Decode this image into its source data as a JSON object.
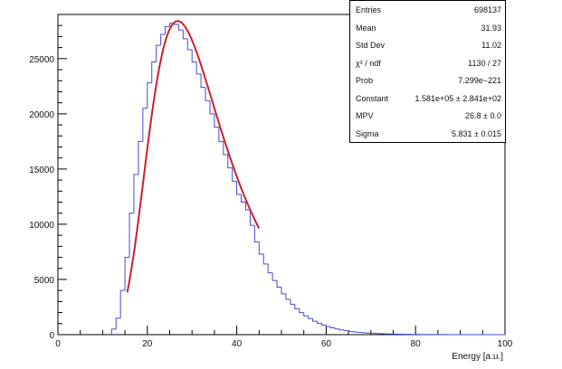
{
  "chart_data": {
    "type": "histogram",
    "title": "",
    "xlabel": "Energy [a.u.]",
    "ylabel": "",
    "xlim": [
      0,
      100
    ],
    "ylim": [
      0,
      29000
    ],
    "x_ticks": [
      0,
      20,
      40,
      60,
      80,
      100
    ],
    "y_ticks": [
      0,
      5000,
      10000,
      15000,
      20000,
      25000
    ],
    "y_tick_labels": [
      "0",
      "5000",
      "10000",
      "15000",
      "20000",
      "25000"
    ],
    "bin_width": 1,
    "histogram": {
      "color": "#4848d8",
      "bins_x": [
        12,
        13,
        14,
        15,
        16,
        17,
        18,
        19,
        20,
        21,
        22,
        23,
        24,
        25,
        26,
        27,
        28,
        29,
        30,
        31,
        32,
        33,
        34,
        35,
        36,
        37,
        38,
        39,
        40,
        41,
        42,
        43,
        44,
        45,
        46,
        47,
        48,
        49,
        50,
        51,
        52,
        53,
        54,
        55,
        56,
        57,
        58,
        59,
        60,
        61,
        62,
        63,
        64,
        65,
        66,
        67,
        68,
        69,
        70,
        71,
        72,
        73,
        74,
        75,
        76,
        77,
        78,
        79,
        80,
        81,
        82,
        83,
        84,
        85,
        86,
        87,
        88,
        89,
        90,
        91,
        92,
        93,
        94,
        95,
        96,
        97,
        98,
        99
      ],
      "counts": [
        500,
        1500,
        4000,
        7000,
        11000,
        14500,
        17500,
        20500,
        22800,
        24700,
        26200,
        27200,
        27900,
        28200,
        28100,
        27600,
        26800,
        25800,
        24700,
        23600,
        22400,
        21200,
        20000,
        18800,
        17500,
        16300,
        15100,
        13900,
        12700,
        12000,
        11300,
        9900,
        8400,
        7300,
        6400,
        5600,
        4900,
        4300,
        3700,
        3200,
        2750,
        2350,
        2000,
        1700,
        1450,
        1220,
        1030,
        870,
        730,
        610,
        510,
        430,
        360,
        300,
        250,
        210,
        175,
        145,
        120,
        100,
        85,
        70,
        58,
        48,
        40,
        33,
        27,
        22,
        18,
        15,
        12,
        10,
        8,
        7,
        6,
        5,
        4,
        3,
        3,
        2,
        2,
        1,
        1,
        1,
        1,
        1,
        0,
        0
      ]
    },
    "fit": {
      "name": "landau",
      "color": "#cc1f2f",
      "x_range": [
        15.5,
        45
      ],
      "constant": 158100,
      "mpv": 26.8,
      "sigma": 5.831
    },
    "grid": false,
    "stats_box": {
      "position": "top-right",
      "rows": [
        {
          "name": "Entries",
          "value": "698137"
        },
        {
          "name": "Mean",
          "value": "31.93"
        },
        {
          "name": "Std Dev",
          "value": "11.02"
        },
        {
          "name": "χ² / ndf",
          "value": "1130 / 27"
        },
        {
          "name": "Prob",
          "value": "7.299e−221"
        },
        {
          "name": "Constant",
          "value": "1.581e+05 ± 2.841e+02"
        },
        {
          "name": "MPV",
          "value": "26.8 ± 0.0"
        },
        {
          "name": "Sigma",
          "value": "5.831 ± 0.015"
        }
      ]
    }
  }
}
